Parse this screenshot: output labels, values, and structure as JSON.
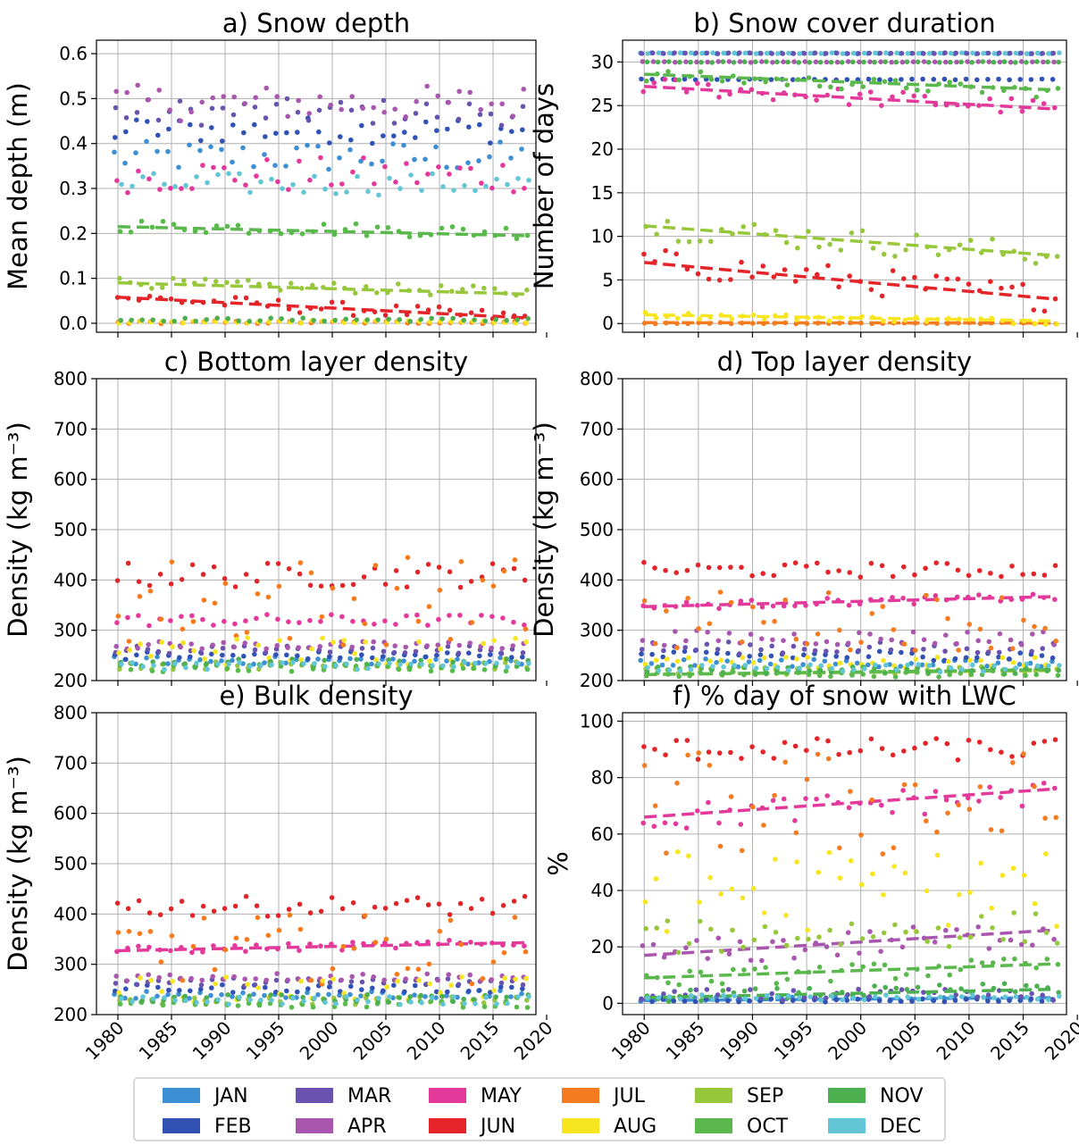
{
  "months": [
    {
      "label": "JAN",
      "color": "#3d8fd4"
    },
    {
      "label": "FEB",
      "color": "#3151b3"
    },
    {
      "label": "MAR",
      "color": "#6952b0"
    },
    {
      "label": "APR",
      "color": "#a957ae"
    },
    {
      "label": "MAY",
      "color": "#e2399b"
    },
    {
      "label": "JUN",
      "color": "#e52429"
    },
    {
      "label": "JUL",
      "color": "#f47b20"
    },
    {
      "label": "AUG",
      "color": "#f7e51f"
    },
    {
      "label": "SEP",
      "color": "#97c83c"
    },
    {
      "label": "OCT",
      "color": "#5ab84d"
    },
    {
      "label": "NOV",
      "color": "#4caf50"
    },
    {
      "label": "DEC",
      "color": "#62c6d6"
    }
  ],
  "chart_data": [
    {
      "id": "a",
      "type": "scatter",
      "title": "a) Snow depth",
      "ylabel": "Mean depth (m)",
      "xlim": [
        1978,
        2019
      ],
      "ylim": [
        -0.02,
        0.63
      ],
      "xticks": [
        1980,
        1985,
        1990,
        1995,
        2000,
        2005,
        2010,
        2015,
        2020
      ],
      "yticks": [
        "0.0",
        "0.1",
        "0.2",
        "0.3",
        "0.4",
        "0.5",
        "0.6"
      ],
      "show_xticklabels": false,
      "grid": true,
      "series": [
        {
          "month": "JAN",
          "mean": 0.37,
          "slope": 0,
          "spread": 0.035
        },
        {
          "month": "FEB",
          "mean": 0.43,
          "slope": 0,
          "spread": 0.03
        },
        {
          "month": "MAR",
          "mean": 0.47,
          "slope": 0,
          "spread": 0.03
        },
        {
          "month": "APR",
          "mean": 0.49,
          "slope": 0,
          "spread": 0.04
        },
        {
          "month": "MAY",
          "mean": 0.33,
          "slope": 0,
          "spread": 0.04
        },
        {
          "month": "JUN",
          "mean": 0.035,
          "slope": -0.0012,
          "spread": 0.015,
          "trend": [
            0.058,
            0.012
          ]
        },
        {
          "month": "JUL",
          "mean": 0.002,
          "slope": 0,
          "spread": 0.003
        },
        {
          "month": "AUG",
          "mean": 0.003,
          "slope": 0,
          "spread": 0.003
        },
        {
          "month": "SEP",
          "mean": 0.08,
          "slope": -0.0006,
          "spread": 0.012,
          "trend": [
            0.09,
            0.065
          ]
        },
        {
          "month": "OCT",
          "mean": 0.21,
          "slope": -0.0004,
          "spread": 0.015,
          "trend": [
            0.215,
            0.195
          ]
        },
        {
          "month": "NOV",
          "mean": 0.008,
          "slope": 0,
          "spread": 0.004
        },
        {
          "month": "DEC",
          "mean": 0.31,
          "slope": 0,
          "spread": 0.025
        }
      ]
    },
    {
      "id": "b",
      "type": "scatter",
      "title": "b) Snow cover duration",
      "ylabel": "Number of days",
      "xlim": [
        1978,
        2019
      ],
      "ylim": [
        -1,
        32.5
      ],
      "xticks": [
        1980,
        1985,
        1990,
        1995,
        2000,
        2005,
        2010,
        2015,
        2020
      ],
      "yticks": [
        "0",
        "5",
        "10",
        "15",
        "20",
        "25",
        "30"
      ],
      "show_xticklabels": false,
      "grid": true,
      "series": [
        {
          "month": "JAN",
          "mean": 31,
          "slope": 0,
          "spread": 0.05
        },
        {
          "month": "FEB",
          "mean": 28,
          "slope": 0,
          "spread": 0.05
        },
        {
          "month": "MAR",
          "mean": 31,
          "slope": 0,
          "spread": 0.05
        },
        {
          "month": "APR",
          "mean": 30,
          "slope": 0,
          "spread": 0.05
        },
        {
          "month": "MAY",
          "mean": 26,
          "slope": -0.07,
          "spread": 1.0,
          "trend": [
            27.2,
            24.6
          ]
        },
        {
          "month": "JUN",
          "mean": 5,
          "slope": -0.11,
          "spread": 1.6,
          "trend": [
            7.0,
            2.8
          ]
        },
        {
          "month": "JUL",
          "mean": 0.05,
          "slope": 0,
          "spread": 0.08,
          "trend": [
            0.1,
            0.05
          ]
        },
        {
          "month": "AUG",
          "mean": 0.6,
          "slope": -0.02,
          "spread": 0.35,
          "trend": [
            1.0,
            0.3
          ]
        },
        {
          "month": "SEP",
          "mean": 9.5,
          "slope": -0.09,
          "spread": 1.5,
          "trend": [
            11.2,
            7.8
          ]
        },
        {
          "month": "OCT",
          "mean": 27.5,
          "slope": -0.05,
          "spread": 0.7,
          "trend": [
            28.6,
            26.8
          ]
        },
        {
          "month": "NOV",
          "mean": 30,
          "slope": 0,
          "spread": 0.05
        },
        {
          "month": "DEC",
          "mean": 31,
          "slope": 0,
          "spread": 0.05
        }
      ]
    },
    {
      "id": "c",
      "type": "scatter",
      "title": "c) Bottom layer density",
      "ylabel": "Density (kg m⁻³)",
      "xlim": [
        1978,
        2019
      ],
      "ylim": [
        200,
        800
      ],
      "xticks": [
        1980,
        1985,
        1990,
        1995,
        2000,
        2005,
        2010,
        2015,
        2020
      ],
      "yticks": [
        "200",
        "300",
        "400",
        "500",
        "600",
        "700",
        "800"
      ],
      "show_xticklabels": false,
      "grid": true,
      "series": [
        {
          "month": "JAN",
          "mean": 240,
          "slope": 0,
          "spread": 8
        },
        {
          "month": "FEB",
          "mean": 250,
          "slope": 0,
          "spread": 8
        },
        {
          "month": "MAR",
          "mean": 262,
          "slope": 0,
          "spread": 8
        },
        {
          "month": "APR",
          "mean": 270,
          "slope": 0,
          "spread": 8
        },
        {
          "month": "MAY",
          "mean": 320,
          "slope": 0,
          "spread": 12
        },
        {
          "month": "JUN",
          "mean": 410,
          "slope": 0,
          "spread": 25
        },
        {
          "month": "JUL",
          "mean": 360,
          "slope": 0,
          "spread": 90
        },
        {
          "month": "AUG",
          "mean": 260,
          "slope": 0,
          "spread": 30
        },
        {
          "month": "SEP",
          "mean": 230,
          "slope": 0,
          "spread": 8
        },
        {
          "month": "OCT",
          "mean": 225,
          "slope": 0,
          "spread": 8
        },
        {
          "month": "NOV",
          "mean": 235,
          "slope": 0,
          "spread": 8
        },
        {
          "month": "DEC",
          "mean": 230,
          "slope": 0,
          "spread": 8
        }
      ]
    },
    {
      "id": "d",
      "type": "scatter",
      "title": "d) Top layer density",
      "ylabel": "Density (kg m⁻³)",
      "xlim": [
        1978,
        2019
      ],
      "ylim": [
        200,
        800
      ],
      "xticks": [
        1980,
        1985,
        1990,
        1995,
        2000,
        2005,
        2010,
        2015,
        2020
      ],
      "yticks": [
        "200",
        "300",
        "400",
        "500",
        "600",
        "700",
        "800"
      ],
      "show_xticklabels": false,
      "grid": true,
      "series": [
        {
          "month": "JAN",
          "mean": 235,
          "slope": 0,
          "spread": 8
        },
        {
          "month": "FEB",
          "mean": 250,
          "slope": 0,
          "spread": 10
        },
        {
          "month": "MAR",
          "mean": 265,
          "slope": 0,
          "spread": 12
        },
        {
          "month": "APR",
          "mean": 285,
          "slope": 0,
          "spread": 15
        },
        {
          "month": "MAY",
          "mean": 357,
          "slope": 0.5,
          "spread": 8,
          "trend": [
            347,
            367
          ]
        },
        {
          "month": "JUN",
          "mean": 420,
          "slope": 0,
          "spread": 15
        },
        {
          "month": "JUL",
          "mean": 320,
          "slope": 0,
          "spread": 60
        },
        {
          "month": "AUG",
          "mean": 235,
          "slope": 0,
          "spread": 12
        },
        {
          "month": "SEP",
          "mean": 220,
          "slope": 0,
          "spread": 8,
          "trend": [
            212,
            220
          ]
        },
        {
          "month": "OCT",
          "mean": 215,
          "slope": 0,
          "spread": 8,
          "trend": [
            212,
            222
          ]
        },
        {
          "month": "NOV",
          "mean": 220,
          "slope": 0,
          "spread": 8
        },
        {
          "month": "DEC",
          "mean": 225,
          "slope": 0,
          "spread": 8
        }
      ]
    },
    {
      "id": "e",
      "type": "scatter",
      "title": "e) Bulk density",
      "ylabel": "Density (kg m⁻³)",
      "xlim": [
        1978,
        2019
      ],
      "ylim": [
        200,
        800
      ],
      "xticks": [
        1980,
        1985,
        1990,
        1995,
        2000,
        2005,
        2010,
        2015,
        2020
      ],
      "yticks": [
        "200",
        "300",
        "400",
        "500",
        "600",
        "700",
        "800"
      ],
      "show_xticklabels": true,
      "grid": true,
      "series": [
        {
          "month": "JAN",
          "mean": 240,
          "slope": 0,
          "spread": 8
        },
        {
          "month": "FEB",
          "mean": 252,
          "slope": 0,
          "spread": 8
        },
        {
          "month": "MAR",
          "mean": 265,
          "slope": 0,
          "spread": 8
        },
        {
          "month": "APR",
          "mean": 275,
          "slope": 0,
          "spread": 8
        },
        {
          "month": "MAY",
          "mean": 335,
          "slope": 0.4,
          "spread": 8,
          "trend": [
            327,
            343
          ]
        },
        {
          "month": "JUN",
          "mean": 415,
          "slope": 0,
          "spread": 20
        },
        {
          "month": "JUL",
          "mean": 330,
          "slope": 0,
          "spread": 70
        },
        {
          "month": "AUG",
          "mean": 250,
          "slope": 0,
          "spread": 25
        },
        {
          "month": "SEP",
          "mean": 228,
          "slope": 0,
          "spread": 8
        },
        {
          "month": "OCT",
          "mean": 222,
          "slope": 0,
          "spread": 8
        },
        {
          "month": "NOV",
          "mean": 232,
          "slope": 0,
          "spread": 8
        },
        {
          "month": "DEC",
          "mean": 228,
          "slope": 0,
          "spread": 8
        }
      ]
    },
    {
      "id": "f",
      "type": "scatter",
      "title": "f) % day of snow with LWC",
      "ylabel": "%",
      "xlim": [
        1978,
        2019
      ],
      "ylim": [
        -4,
        103
      ],
      "xticks": [
        1980,
        1985,
        1990,
        1995,
        2000,
        2005,
        2010,
        2015,
        2020
      ],
      "yticks": [
        "0",
        "20",
        "40",
        "60",
        "80",
        "100"
      ],
      "show_xticklabels": true,
      "grid": true,
      "series": [
        {
          "month": "JAN",
          "mean": 1.5,
          "slope": 0,
          "spread": 0.8,
          "trend": [
            1.0,
            2.0
          ]
        },
        {
          "month": "FEB",
          "mean": 1.0,
          "slope": 0,
          "spread": 0.6
        },
        {
          "month": "MAR",
          "mean": 3,
          "slope": 0,
          "spread": 2
        },
        {
          "month": "APR",
          "mean": 21,
          "slope": 0.22,
          "spread": 5,
          "trend": [
            17,
            26
          ]
        },
        {
          "month": "MAY",
          "mean": 70,
          "slope": 0.25,
          "spread": 5,
          "trend": [
            66,
            76
          ]
        },
        {
          "month": "JUN",
          "mean": 90,
          "slope": 0,
          "spread": 4
        },
        {
          "month": "JUL",
          "mean": 70,
          "slope": 0,
          "spread": 20
        },
        {
          "month": "AUG",
          "mean": 40,
          "slope": 0,
          "spread": 15
        },
        {
          "month": "SEP",
          "mean": 25,
          "slope": 0.1,
          "spread": 6
        },
        {
          "month": "OCT",
          "mean": 11,
          "slope": 0.14,
          "spread": 3,
          "trend": [
            9,
            14
          ]
        },
        {
          "month": "NOV",
          "mean": 4,
          "slope": 0.08,
          "spread": 2,
          "trend": [
            2,
            5
          ]
        },
        {
          "month": "DEC",
          "mean": 2,
          "slope": 0,
          "spread": 1
        }
      ]
    }
  ]
}
